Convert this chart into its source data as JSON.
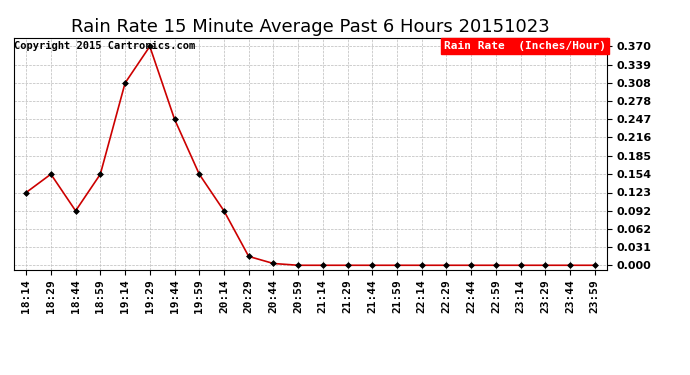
{
  "title": "Rain Rate 15 Minute Average Past 6 Hours 20151023",
  "copyright": "Copyright 2015 Cartronics.com",
  "legend_label": "Rain Rate  (Inches/Hour)",
  "legend_bg": "#ff0000",
  "legend_fg": "#ffffff",
  "line_color": "#cc0000",
  "marker_color": "#000000",
  "background_color": "#ffffff",
  "grid_color": "#bbbbbb",
  "x_labels": [
    "18:14",
    "18:29",
    "18:44",
    "18:59",
    "19:14",
    "19:29",
    "19:44",
    "19:59",
    "20:14",
    "20:29",
    "20:44",
    "20:59",
    "21:14",
    "21:29",
    "21:44",
    "21:59",
    "22:14",
    "22:29",
    "22:44",
    "22:59",
    "23:14",
    "23:29",
    "23:44",
    "23:59"
  ],
  "y_values": [
    0.123,
    0.154,
    0.092,
    0.154,
    0.308,
    0.37,
    0.247,
    0.154,
    0.092,
    0.015,
    0.003,
    0.0,
    0.0,
    0.0,
    0.0,
    0.0,
    0.0,
    0.0,
    0.0,
    0.0,
    0.0,
    0.0,
    0.0,
    0.0
  ],
  "yticks": [
    0.0,
    0.031,
    0.062,
    0.092,
    0.123,
    0.154,
    0.185,
    0.216,
    0.247,
    0.278,
    0.308,
    0.339,
    0.37
  ],
  "ylim": [
    -0.008,
    0.385
  ],
  "title_fontsize": 13,
  "tick_fontsize": 8,
  "copyright_fontsize": 7.5,
  "legend_fontsize": 8
}
